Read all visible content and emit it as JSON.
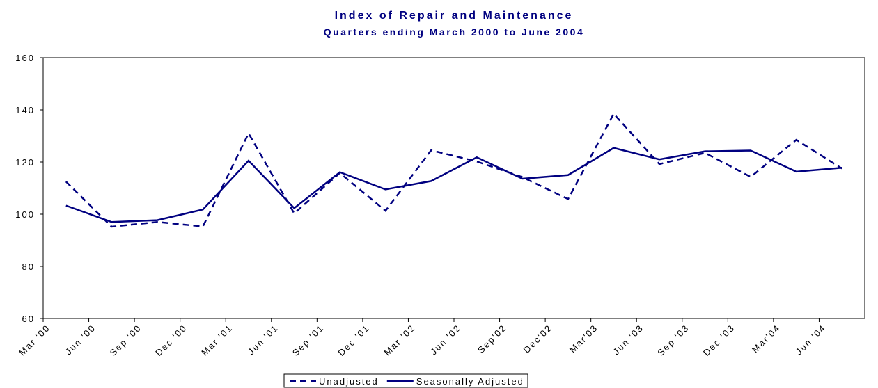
{
  "chart_data": {
    "type": "line",
    "title": "Index of Repair and Maintenance",
    "subtitle": "Quarters ending March 2000 to June 2004",
    "categories": [
      "Mar '00",
      "Jun '00",
      "Sep '00",
      "Dec '00",
      "Mar '01",
      "Jun '01",
      "Sep '01",
      "Dec '01",
      "Mar '02",
      "Jun '02",
      "Sep'02",
      "Dec'02",
      "Mar'03",
      "Jun '03",
      "Sep '03",
      "Dec '03",
      "Mar'04",
      "Jun '04"
    ],
    "series": [
      {
        "name": "Unadjusted",
        "color": "#000080",
        "dashed": true,
        "values": [
          112.5,
          95.2,
          97,
          95.3,
          131,
          100.3,
          115.8,
          101.3,
          124.5,
          120.2,
          114.2,
          105.8,
          138.5,
          119.2,
          123.5,
          114.3,
          128.5,
          117.5
        ]
      },
      {
        "name": "Seasonally Adjusted",
        "color": "#000080",
        "dashed": false,
        "values": [
          103.3,
          97,
          97.7,
          101.8,
          120.5,
          102.3,
          116.1,
          109.5,
          112.7,
          121.8,
          113.6,
          115,
          125.4,
          121,
          124.1,
          124.4,
          116.3,
          117.8
        ]
      }
    ],
    "ylim": [
      60,
      160
    ],
    "yticks": [
      60,
      80,
      100,
      120,
      140,
      160
    ],
    "grid": false,
    "legend": "bottom"
  }
}
